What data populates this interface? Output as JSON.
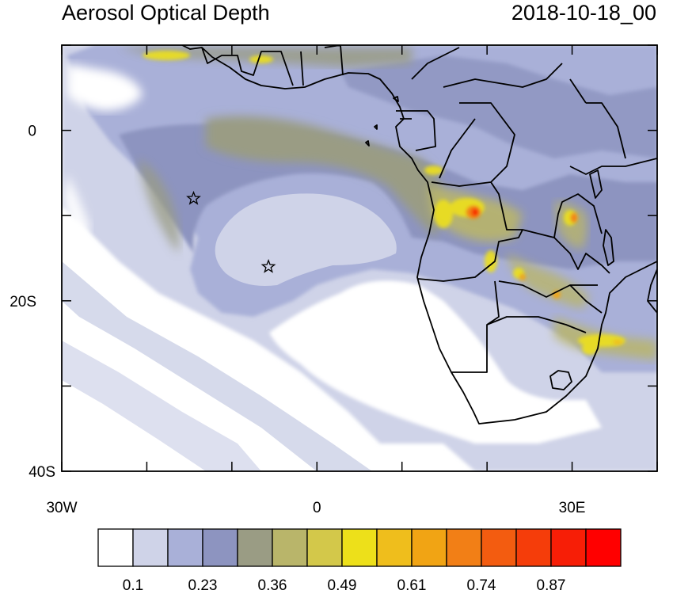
{
  "header": {
    "title": "Aerosol Optical Depth",
    "timestamp": "2018-10-18_00"
  },
  "axes": {
    "lat_ticks": [
      {
        "label": "0",
        "lat": 0
      },
      {
        "label": "20S",
        "lat": -20
      },
      {
        "label": "40S",
        "lat": -40
      }
    ],
    "lon_ticks": [
      {
        "label": "30W",
        "lon": -30
      },
      {
        "label": "0",
        "lon": 0
      },
      {
        "label": "30E",
        "lon": 30
      }
    ],
    "lat_range": [
      -40,
      10
    ],
    "lon_range": [
      -30,
      40
    ]
  },
  "markers": [
    {
      "name": "station-star-1",
      "lon": -14.5,
      "lat": -8
    },
    {
      "name": "station-star-2",
      "lon": -5.7,
      "lat": -16
    }
  ],
  "colorbar": {
    "colors": [
      "#ffffff",
      "#cfd3e8",
      "#a9b0d8",
      "#8d94c0",
      "#9a9c84",
      "#b9b56a",
      "#d3c84a",
      "#ede01a",
      "#efbe1c",
      "#f1a414",
      "#f27f16",
      "#f35c10",
      "#f53d0a",
      "#f71e06",
      "#ff0000"
    ],
    "labels": [
      "0.1",
      "0.23",
      "0.36",
      "0.49",
      "0.61",
      "0.74",
      "0.87"
    ]
  }
}
